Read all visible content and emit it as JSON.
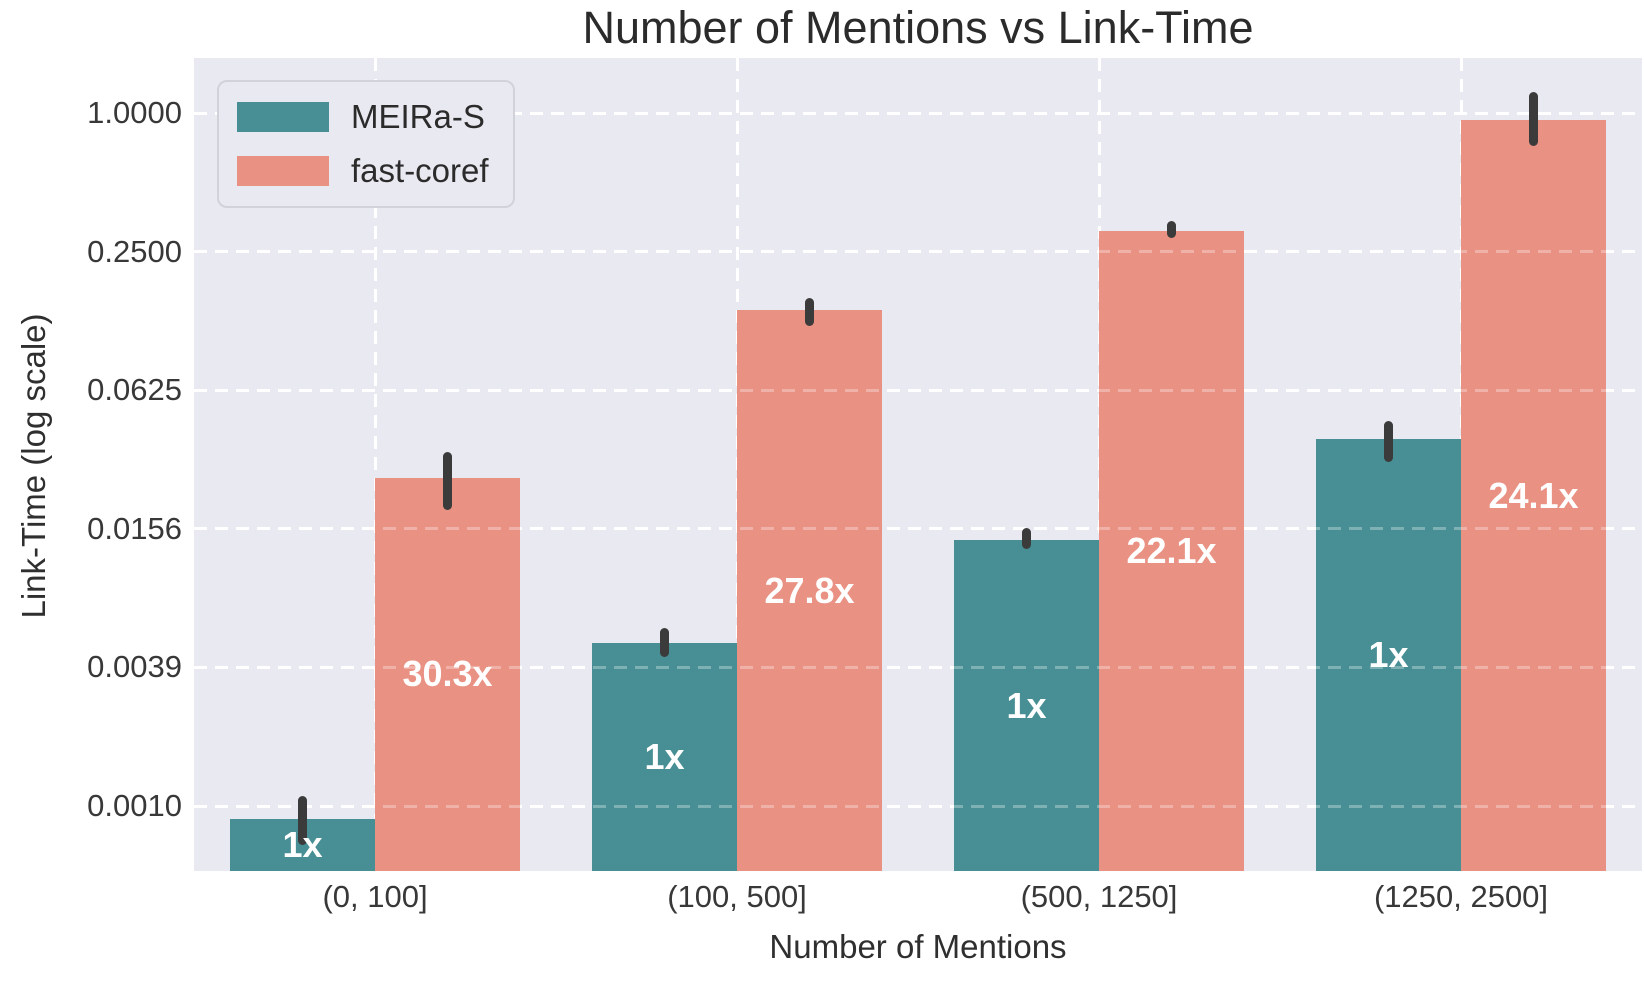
{
  "chart_data": {
    "type": "bar",
    "title": "Number of Mentions vs Link-Time",
    "xlabel": "Number of Mentions",
    "ylabel": "Link-Time (log scale)",
    "categories": [
      "(0, 100]",
      "(100, 500]",
      "(500, 1250]",
      "(1250, 2500]"
    ],
    "series": [
      {
        "name": "MEIRa-S",
        "color": "#478f94",
        "values": [
          0.00086,
          0.005,
          0.0139,
          0.0385
        ],
        "err_lo": [
          0.00066,
          0.00432,
          0.0128,
          0.0306
        ],
        "err_hi": [
          0.00108,
          0.00578,
          0.0157,
          0.046
        ],
        "bar_labels": [
          "1x",
          "1x",
          "1x",
          "1x"
        ]
      },
      {
        "name": "fast-coref",
        "color": "#e99183",
        "values": [
          0.0261,
          0.139,
          0.307,
          0.928
        ],
        "err_lo": [
          0.0188,
          0.119,
          0.285,
          0.72
        ],
        "err_hi": [
          0.0336,
          0.157,
          0.341,
          1.23
        ],
        "bar_labels": [
          "30.3x",
          "27.8x",
          "22.1x",
          "24.1x"
        ]
      }
    ],
    "yticks": {
      "labels": [
        "1.0000",
        "0.2500",
        "0.0625",
        "0.0156",
        "0.0039",
        "0.0010"
      ],
      "values": [
        1.0,
        0.25,
        0.0625,
        0.015625,
        0.00390625,
        0.0009765625
      ]
    },
    "ylim": [
      0.00051,
      1.7
    ],
    "log_scale": true,
    "log_base": 4,
    "grid": "dashed-white-both-axes",
    "legend_position": "upper left",
    "legend_entries": [
      "MEIRa-S",
      "fast-coref"
    ],
    "colors": {
      "plot_background": "#e9e9f1",
      "figure_background": "#ffffff",
      "gridline": "#ffffff",
      "error_bar": "#3b3b3b",
      "text": "#2f2f2f",
      "bar_label_text": "#ffffff"
    }
  }
}
